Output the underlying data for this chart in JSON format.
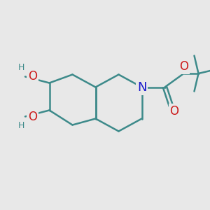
{
  "bg_color": "#e8e8e8",
  "bond_color": "#3d8a8a",
  "n_color": "#1a1acc",
  "o_color": "#cc1a1a",
  "h_color": "#3d8a8a",
  "line_width": 1.8,
  "font_size_atoms": 12,
  "font_size_h": 9,
  "xlim": [
    0,
    10
  ],
  "ylim": [
    0,
    10
  ]
}
